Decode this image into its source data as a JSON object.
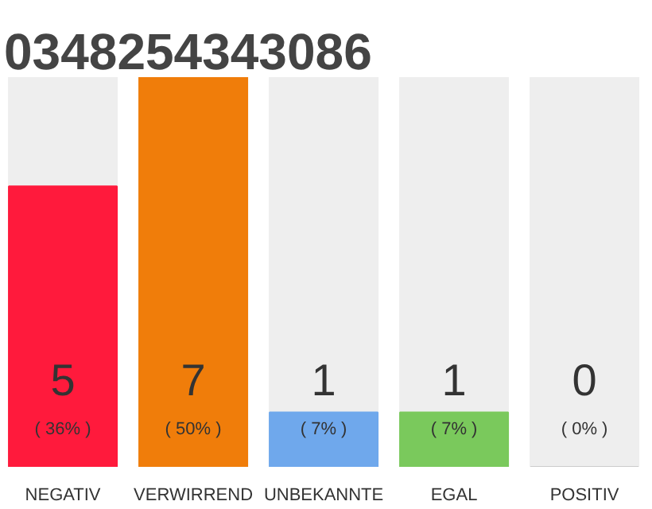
{
  "chart_data": {
    "type": "bar",
    "title": "0348254343086",
    "categories": [
      "NEGATIV",
      "VERWIRREND",
      "UNBEKANNTE",
      "EGAL",
      "POSITIV"
    ],
    "values": [
      36,
      50,
      7,
      7,
      0
    ],
    "colors": [
      "#ff1a3c",
      "#f07d0a",
      "#6fa8ec",
      "#7ac95c",
      "#cccccc"
    ],
    "value_labels": [
      "( 36% )",
      "( 50% )",
      "( 7% )",
      "( 7% )",
      "( 0% )"
    ],
    "annotations": [
      "5",
      "7",
      "1",
      "1",
      "0"
    ],
    "tick_labels": "x"
  }
}
